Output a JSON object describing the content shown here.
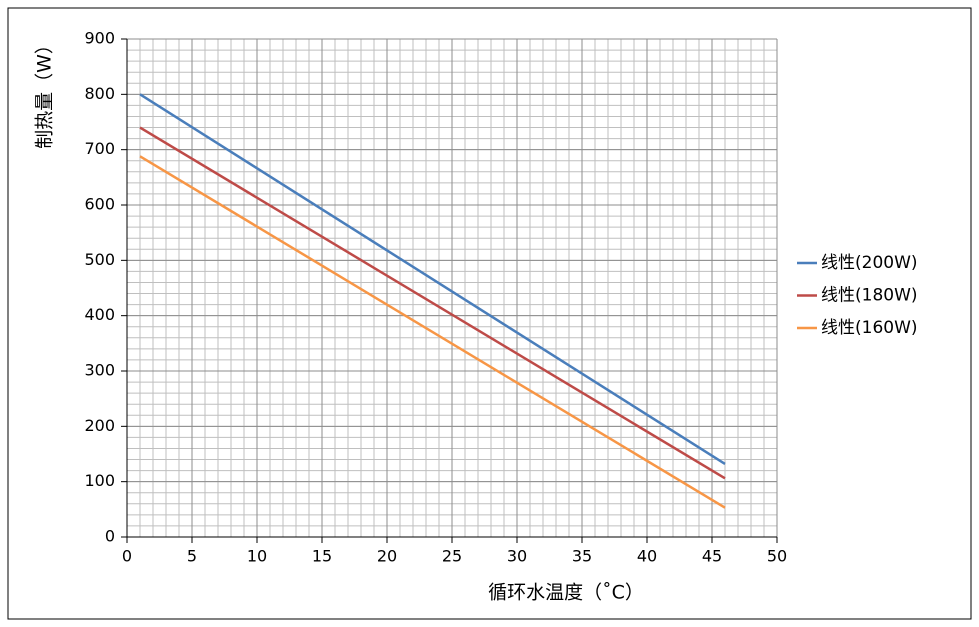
{
  "chart_data": {
    "type": "line",
    "x": [
      1,
      46
    ],
    "series": [
      {
        "name": "线性(200W)",
        "color": "#4a7ebb",
        "values": [
          800,
          132
        ]
      },
      {
        "name": "线性(180W)",
        "color": "#be4b48",
        "values": [
          740,
          106
        ]
      },
      {
        "name": "线性(160W)",
        "color": "#f79646",
        "values": [
          688,
          53
        ]
      }
    ],
    "xlabel": "循环水温度（˚C）",
    "ylabel": "制热量（W）",
    "xlim": [
      0,
      50
    ],
    "xticks": [
      0,
      5,
      10,
      15,
      20,
      25,
      30,
      35,
      40,
      45,
      50
    ],
    "ylim": [
      0,
      900
    ],
    "yticks": [
      0,
      100,
      200,
      300,
      400,
      500,
      600,
      700,
      800,
      900
    ],
    "grid": {
      "minor_x": 1,
      "minor_y": 20
    },
    "legend": "right"
  }
}
